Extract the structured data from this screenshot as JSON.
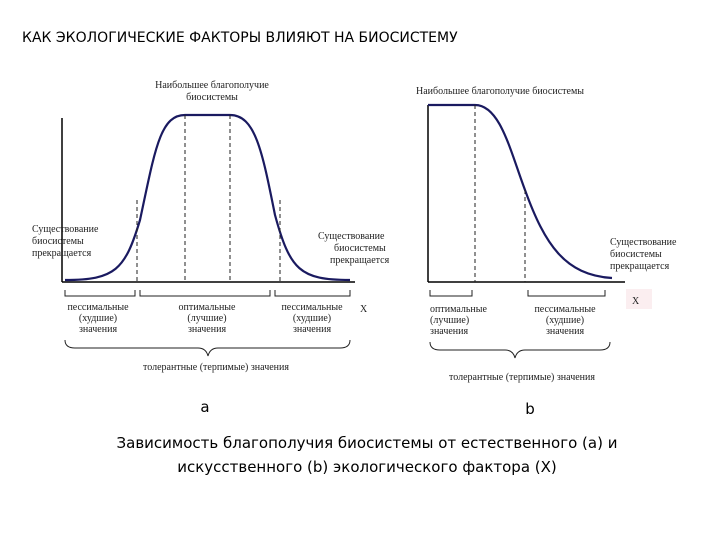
{
  "title": "КАК ЭКОЛОГИЧЕСКИЕ ФАКТОРЫ ВЛИЯЮТ НА БИОСИСТЕМУ",
  "diagram_a": {
    "top_label": [
      "Наибольшее благополучие",
      "биосистемы"
    ],
    "left_label": [
      "Существование",
      "биосистемы",
      "прекращается"
    ],
    "right_label": [
      "Существование",
      "биосистемы",
      "прекращается"
    ],
    "axis_label": "X",
    "zones": [
      [
        "пессимальные",
        "(худшие)",
        "значения"
      ],
      [
        "оптимальные",
        "(лучшие)",
        "значения"
      ],
      [
        "пессимальные",
        "(худшие)",
        "значения"
      ]
    ],
    "bottom_label": "толерантные (терпимые) значения",
    "letter": "a"
  },
  "diagram_b": {
    "top_label": "Наибольшее благополучие биосистемы",
    "right_label": [
      "Существование",
      "биосистемы",
      "прекращается"
    ],
    "axis_label": "X",
    "zones": [
      [
        "оптимальные",
        "(лучшие)",
        "значения"
      ],
      [
        "пессимальные",
        "(худшие)",
        "значения"
      ]
    ],
    "bottom_label": "толерантные (терпимые) значения",
    "letter": "b"
  },
  "caption": [
    "Зависимость благополучия биосистемы от  естественного (a) и",
    "искусственного (b) экологического фактора (X)"
  ]
}
